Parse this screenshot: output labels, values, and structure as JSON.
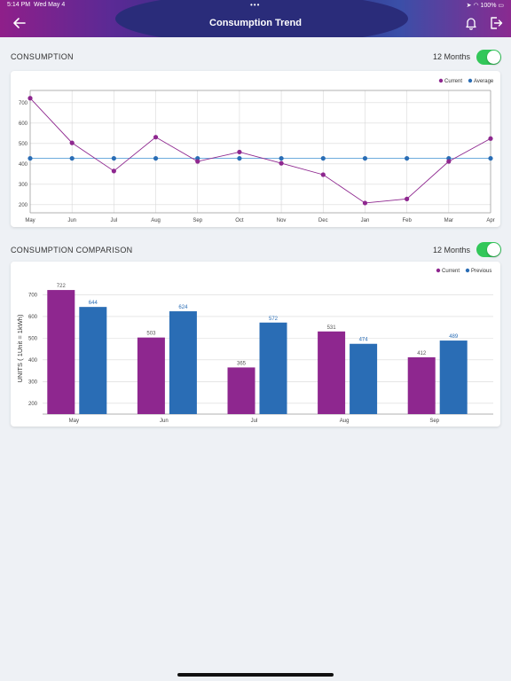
{
  "status_bar": {
    "time": "5:14 PM",
    "date": "Wed May 4",
    "battery": "100%"
  },
  "header": {
    "title": "Consumption Trend",
    "back_icon": "arrow-left-icon",
    "bell_icon": "bell-icon",
    "logout_icon": "logout-icon"
  },
  "colors": {
    "current": "#8e278f",
    "average": "#2a6db5",
    "previous": "#2a6db5",
    "toggle": "#33c75a"
  },
  "consumption": {
    "title": "CONSUMPTION",
    "toggle_label": "12 Months",
    "toggle_on": true
  },
  "comparison": {
    "title": "CONSUMPTION COMPARISON",
    "toggle_label": "12 Months",
    "toggle_on": true
  },
  "chart_data": [
    {
      "type": "line",
      "categories": [
        "May",
        "Jun",
        "Jul",
        "Aug",
        "Sep",
        "Oct",
        "Nov",
        "Dec",
        "Jan",
        "Feb",
        "Mar",
        "Apr"
      ],
      "series": [
        {
          "name": "Current",
          "values": [
            722,
            503,
            365,
            531,
            412,
            458,
            403,
            347,
            208,
            228,
            412,
            524
          ]
        },
        {
          "name": "Average",
          "values": [
            427,
            427,
            427,
            427,
            427,
            427,
            427,
            427,
            427,
            427,
            427,
            427
          ]
        }
      ],
      "yticks": [
        200,
        300,
        400,
        500,
        600,
        700
      ],
      "ylim": [
        160,
        760
      ],
      "grid": true,
      "legend": "top-right"
    },
    {
      "type": "bar",
      "categories": [
        "May",
        "Jun",
        "Jul",
        "Aug",
        "Sep"
      ],
      "series": [
        {
          "name": "Current",
          "values": [
            722,
            503,
            365,
            531,
            412
          ]
        },
        {
          "name": "Previous",
          "values": [
            644,
            624,
            572,
            474,
            489
          ]
        }
      ],
      "ylabel": "UNITS ( 1Unit = 1kWh)",
      "yticks": [
        200,
        300,
        400,
        500,
        600,
        700
      ],
      "ylim": [
        150,
        755
      ],
      "grid": true,
      "legend": "top-right"
    }
  ]
}
